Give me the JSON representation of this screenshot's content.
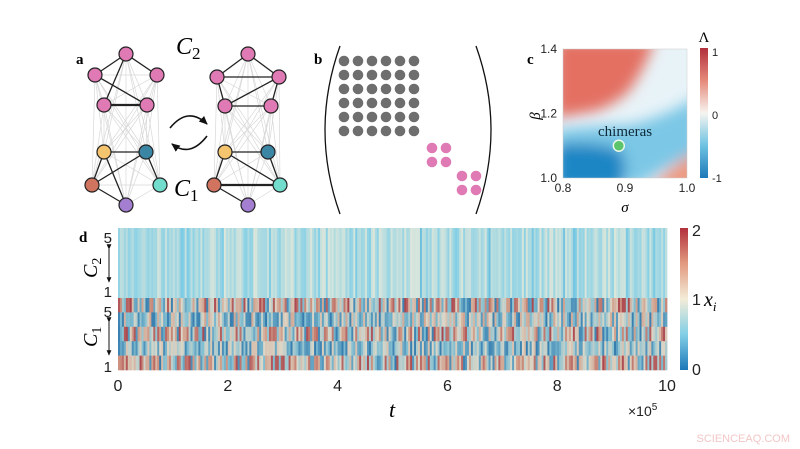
{
  "panels": {
    "a": {
      "label": "a",
      "c2": "C",
      "c2_sub": "2",
      "c1": "C",
      "c1_sub": "1"
    },
    "b": {
      "label": "b"
    },
    "c": {
      "label": "c",
      "annotation": "chimeras"
    },
    "d": {
      "label": "d",
      "group_top": "C",
      "group_top_sub": "2",
      "group_bottom": "C",
      "group_bottom_sub": "1"
    }
  },
  "node_colors": {
    "pink": "#e07ab5",
    "orange": "#f5c46e",
    "teal": "#3b86a4",
    "salmon": "#d0735f",
    "cyan": "#72dccd",
    "purple": "#a47fd1",
    "gray": "#6e6e6e"
  },
  "watermark": "SCIENCEAQ.COM",
  "chart_data": [
    {
      "type": "heatmap",
      "panel": "c",
      "xlabel": "σ",
      "ylabel": "β",
      "xlim": [
        0.8,
        1.0
      ],
      "ylim": [
        1.0,
        1.4
      ],
      "xticks": [
        "0.8",
        "0.9",
        "1.0"
      ],
      "yticks": [
        "1.0",
        "1.2",
        "1.4"
      ],
      "colorbar": {
        "label": "Λ",
        "ticks": [
          "1",
          "0",
          "-1"
        ],
        "range": [
          -1,
          1
        ]
      },
      "marker": {
        "x": 0.89,
        "y": 1.1,
        "label": "chimeras",
        "color": "#5cc46a"
      }
    },
    {
      "type": "heatmap",
      "panel": "d",
      "xlabel": "t",
      "xticks": [
        "0",
        "2",
        "4",
        "6",
        "8",
        "10"
      ],
      "xlim": [
        0,
        1000000
      ],
      "x_multiplier": "×10",
      "x_multiplier_exp": "5",
      "yticks_top": [
        "5",
        "1"
      ],
      "yticks_bottom": [
        "5",
        "1"
      ],
      "colorbar": {
        "label": "x",
        "label_sub": "i",
        "ticks": [
          "2",
          "1",
          "0"
        ],
        "range": [
          0,
          2
        ]
      }
    }
  ]
}
